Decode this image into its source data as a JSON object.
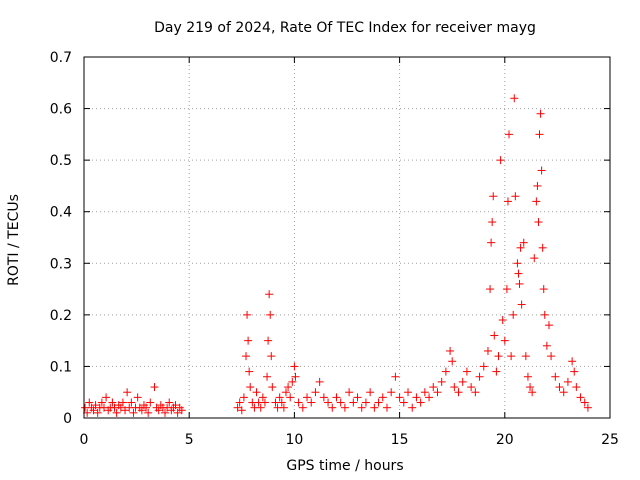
{
  "chart_data": {
    "type": "scatter",
    "title": "Day 219 of 2024, Rate Of TEC Index for receiver mayg",
    "xlabel": "GPS time / hours",
    "ylabel": "ROTI / TECUs",
    "xlim": [
      0,
      25
    ],
    "ylim": [
      0,
      0.7
    ],
    "xticks": [
      0,
      5,
      10,
      15,
      20,
      25
    ],
    "yticks": [
      0,
      0.1,
      0.2,
      0.3,
      0.4,
      0.5,
      0.6,
      0.7
    ],
    "xtick_labels": [
      "0",
      "5",
      "10",
      "15",
      "20",
      "25"
    ],
    "ytick_labels": [
      "0",
      "0.1",
      "0.2",
      "0.3",
      "0.4",
      "0.5",
      "0.6",
      "0.7"
    ],
    "grid": true,
    "marker": "+",
    "color": "#ff0000",
    "series": [
      {
        "name": "ROTI",
        "points": [
          [
            0.05,
            0.02
          ],
          [
            0.15,
            0.01
          ],
          [
            0.25,
            0.03
          ],
          [
            0.35,
            0.02
          ],
          [
            0.45,
            0.015
          ],
          [
            0.55,
            0.025
          ],
          [
            0.65,
            0.01
          ],
          [
            0.75,
            0.02
          ],
          [
            0.85,
            0.03
          ],
          [
            0.95,
            0.02
          ],
          [
            1.05,
            0.04
          ],
          [
            1.15,
            0.015
          ],
          [
            1.25,
            0.02
          ],
          [
            1.35,
            0.03
          ],
          [
            1.45,
            0.02
          ],
          [
            1.55,
            0.01
          ],
          [
            1.65,
            0.025
          ],
          [
            1.75,
            0.02
          ],
          [
            1.85,
            0.03
          ],
          [
            1.95,
            0.015
          ],
          [
            2.05,
            0.05
          ],
          [
            2.15,
            0.02
          ],
          [
            2.25,
            0.03
          ],
          [
            2.35,
            0.01
          ],
          [
            2.45,
            0.02
          ],
          [
            2.55,
            0.04
          ],
          [
            2.65,
            0.02
          ],
          [
            2.75,
            0.015
          ],
          [
            2.85,
            0.025
          ],
          [
            2.95,
            0.02
          ],
          [
            3.05,
            0.01
          ],
          [
            3.15,
            0.03
          ],
          [
            3.35,
            0.06
          ],
          [
            3.45,
            0.02
          ],
          [
            3.55,
            0.015
          ],
          [
            3.65,
            0.025
          ],
          [
            3.75,
            0.02
          ],
          [
            3.85,
            0.01
          ],
          [
            3.95,
            0.02
          ],
          [
            4.05,
            0.03
          ],
          [
            4.15,
            0.015
          ],
          [
            4.25,
            0.02
          ],
          [
            4.35,
            0.025
          ],
          [
            4.45,
            0.01
          ],
          [
            4.55,
            0.02
          ],
          [
            4.65,
            0.015
          ],
          [
            7.3,
            0.02
          ],
          [
            7.4,
            0.03
          ],
          [
            7.5,
            0.015
          ],
          [
            7.6,
            0.04
          ],
          [
            7.7,
            0.12
          ],
          [
            7.75,
            0.2
          ],
          [
            7.8,
            0.15
          ],
          [
            7.85,
            0.09
          ],
          [
            7.9,
            0.06
          ],
          [
            8.0,
            0.03
          ],
          [
            8.1,
            0.02
          ],
          [
            8.2,
            0.05
          ],
          [
            8.3,
            0.03
          ],
          [
            8.4,
            0.02
          ],
          [
            8.5,
            0.04
          ],
          [
            8.6,
            0.03
          ],
          [
            8.7,
            0.08
          ],
          [
            8.75,
            0.15
          ],
          [
            8.8,
            0.24
          ],
          [
            8.85,
            0.2
          ],
          [
            8.9,
            0.12
          ],
          [
            8.95,
            0.06
          ],
          [
            9.1,
            0.03
          ],
          [
            9.2,
            0.02
          ],
          [
            9.3,
            0.04
          ],
          [
            9.4,
            0.03
          ],
          [
            9.5,
            0.02
          ],
          [
            9.6,
            0.05
          ],
          [
            9.7,
            0.06
          ],
          [
            9.8,
            0.04
          ],
          [
            9.9,
            0.07
          ],
          [
            10.0,
            0.1
          ],
          [
            10.05,
            0.08
          ],
          [
            10.2,
            0.03
          ],
          [
            10.4,
            0.02
          ],
          [
            10.6,
            0.04
          ],
          [
            10.8,
            0.03
          ],
          [
            11.0,
            0.05
          ],
          [
            11.2,
            0.07
          ],
          [
            11.4,
            0.04
          ],
          [
            11.6,
            0.03
          ],
          [
            11.8,
            0.02
          ],
          [
            12.0,
            0.04
          ],
          [
            12.2,
            0.03
          ],
          [
            12.4,
            0.02
          ],
          [
            12.6,
            0.05
          ],
          [
            12.8,
            0.03
          ],
          [
            13.0,
            0.04
          ],
          [
            13.2,
            0.02
          ],
          [
            13.4,
            0.03
          ],
          [
            13.6,
            0.05
          ],
          [
            13.8,
            0.02
          ],
          [
            14.0,
            0.03
          ],
          [
            14.2,
            0.04
          ],
          [
            14.4,
            0.02
          ],
          [
            14.6,
            0.05
          ],
          [
            14.8,
            0.08
          ],
          [
            15.0,
            0.04
          ],
          [
            15.2,
            0.03
          ],
          [
            15.4,
            0.05
          ],
          [
            15.6,
            0.02
          ],
          [
            15.8,
            0.04
          ],
          [
            16.0,
            0.03
          ],
          [
            16.2,
            0.05
          ],
          [
            16.4,
            0.04
          ],
          [
            16.6,
            0.06
          ],
          [
            16.8,
            0.05
          ],
          [
            17.0,
            0.07
          ],
          [
            17.2,
            0.09
          ],
          [
            17.4,
            0.13
          ],
          [
            17.5,
            0.11
          ],
          [
            17.6,
            0.06
          ],
          [
            17.8,
            0.05
          ],
          [
            18.0,
            0.07
          ],
          [
            18.2,
            0.09
          ],
          [
            18.4,
            0.06
          ],
          [
            18.6,
            0.05
          ],
          [
            18.8,
            0.08
          ],
          [
            19.0,
            0.1
          ],
          [
            19.2,
            0.13
          ],
          [
            19.3,
            0.25
          ],
          [
            19.35,
            0.34
          ],
          [
            19.4,
            0.38
          ],
          [
            19.45,
            0.43
          ],
          [
            19.5,
            0.16
          ],
          [
            19.6,
            0.09
          ],
          [
            19.7,
            0.12
          ],
          [
            19.8,
            0.5
          ],
          [
            19.9,
            0.19
          ],
          [
            20.0,
            0.15
          ],
          [
            20.1,
            0.25
          ],
          [
            20.15,
            0.42
          ],
          [
            20.2,
            0.55
          ],
          [
            20.3,
            0.12
          ],
          [
            20.4,
            0.2
          ],
          [
            20.45,
            0.62
          ],
          [
            20.5,
            0.43
          ],
          [
            20.6,
            0.3
          ],
          [
            20.65,
            0.28
          ],
          [
            20.7,
            0.26
          ],
          [
            20.75,
            0.33
          ],
          [
            20.8,
            0.22
          ],
          [
            20.9,
            0.34
          ],
          [
            21.0,
            0.12
          ],
          [
            21.1,
            0.08
          ],
          [
            21.2,
            0.06
          ],
          [
            21.3,
            0.05
          ],
          [
            21.4,
            0.31
          ],
          [
            21.5,
            0.42
          ],
          [
            21.55,
            0.45
          ],
          [
            21.6,
            0.38
          ],
          [
            21.65,
            0.55
          ],
          [
            21.7,
            0.59
          ],
          [
            21.75,
            0.48
          ],
          [
            21.8,
            0.33
          ],
          [
            21.85,
            0.25
          ],
          [
            21.9,
            0.2
          ],
          [
            22.0,
            0.14
          ],
          [
            22.1,
            0.18
          ],
          [
            22.2,
            0.12
          ],
          [
            22.4,
            0.08
          ],
          [
            22.6,
            0.06
          ],
          [
            22.8,
            0.05
          ],
          [
            23.0,
            0.07
          ],
          [
            23.2,
            0.11
          ],
          [
            23.3,
            0.09
          ],
          [
            23.4,
            0.06
          ],
          [
            23.6,
            0.04
          ],
          [
            23.8,
            0.03
          ],
          [
            23.95,
            0.02
          ]
        ]
      }
    ]
  }
}
